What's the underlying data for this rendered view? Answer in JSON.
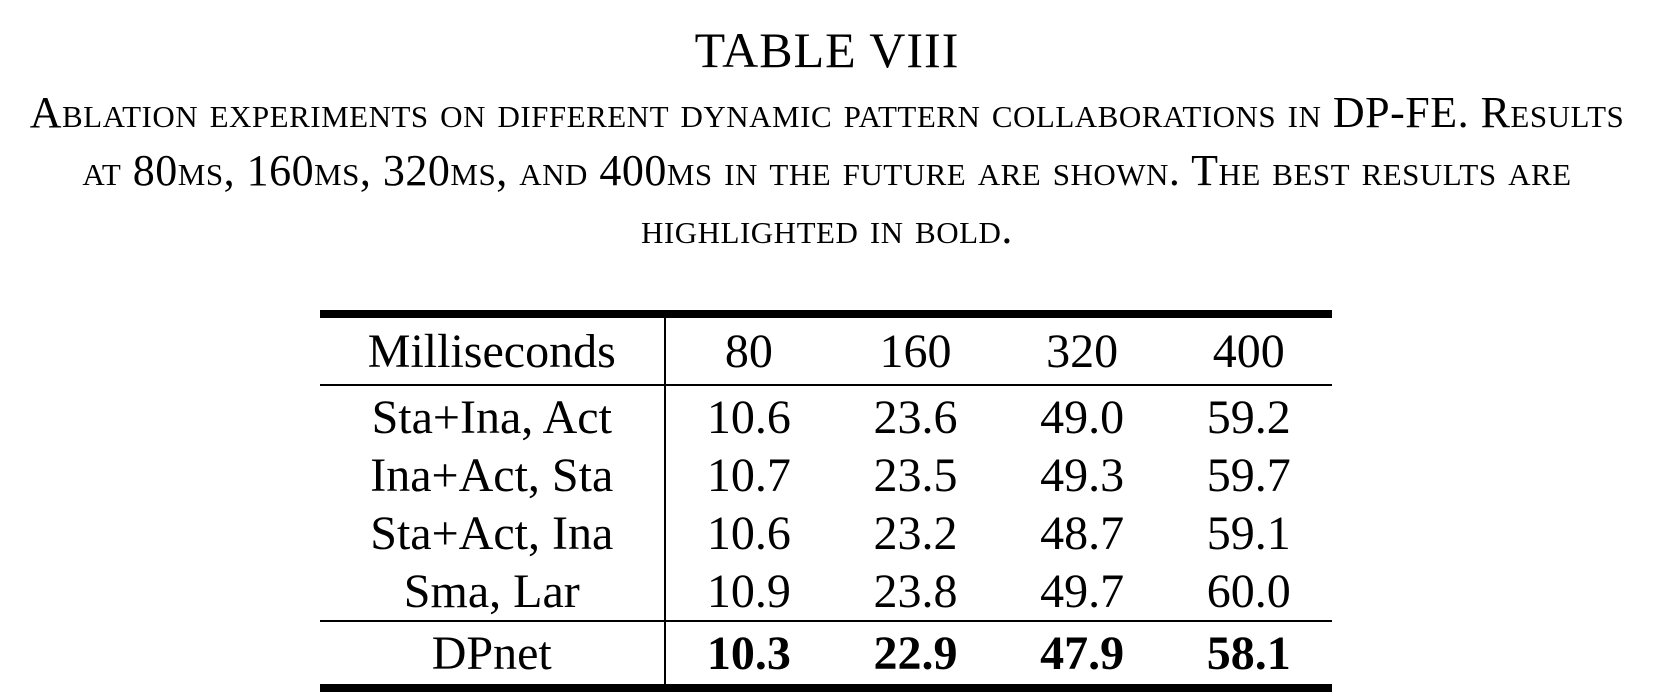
{
  "table": {
    "label": "TABLE VIII",
    "caption": "Ablation experiments on different dynamic pattern collaborations in DP-FE. Results at 80ms, 160ms, 320ms, and 400ms in the future are shown. The best results are highlighted in bold.",
    "header": {
      "label": "Milliseconds",
      "columns": [
        "80",
        "160",
        "320",
        "400"
      ]
    },
    "rows": [
      {
        "method": "Sta+Ina, Act",
        "values": [
          "10.6",
          "23.6",
          "49.0",
          "59.2"
        ]
      },
      {
        "method": "Ina+Act, Sta",
        "values": [
          "10.7",
          "23.5",
          "49.3",
          "59.7"
        ]
      },
      {
        "method": "Sta+Act, Ina",
        "values": [
          "10.6",
          "23.2",
          "48.7",
          "59.1"
        ]
      },
      {
        "method": "Sma, Lar",
        "values": [
          "10.9",
          "23.8",
          "49.7",
          "60.0"
        ]
      }
    ],
    "final_row": {
      "method": "DPnet",
      "values": [
        "10.3",
        "22.9",
        "47.9",
        "58.1"
      ],
      "bold": true
    }
  }
}
